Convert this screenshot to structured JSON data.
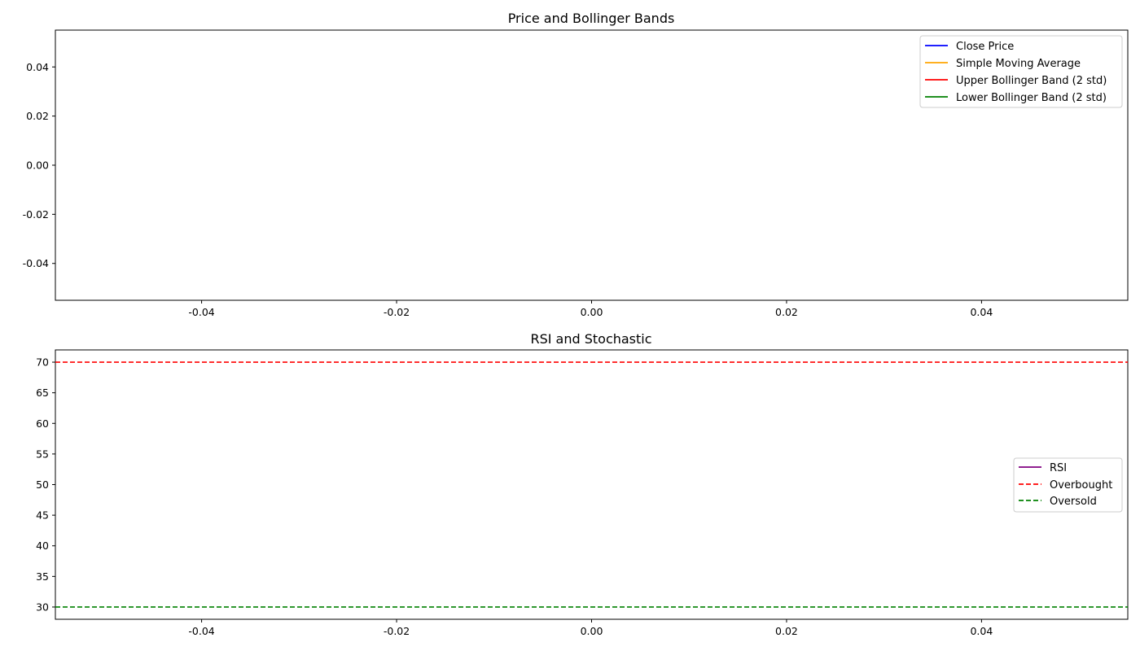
{
  "chart_data": [
    {
      "type": "line",
      "title": "Price and Bollinger Bands",
      "xlabel": "",
      "ylabel": "",
      "xlim": [
        -0.055,
        0.055
      ],
      "ylim": [
        -0.055,
        0.055
      ],
      "x_ticks": [
        "-0.04",
        "-0.02",
        "0.00",
        "0.02",
        "0.04"
      ],
      "y_ticks": [
        "0.04",
        "0.02",
        "0.00",
        "-0.02",
        "-0.04"
      ],
      "x_tick_values": [
        -0.04,
        -0.02,
        0.0,
        0.02,
        0.04
      ],
      "y_tick_values": [
        0.04,
        0.02,
        0.0,
        -0.02,
        -0.04
      ],
      "grid": false,
      "legend_position": "upper right",
      "series": [
        {
          "name": "Close Price",
          "color": "#0000ff",
          "style": "solid",
          "x": [],
          "values": []
        },
        {
          "name": "Simple Moving Average",
          "color": "#ffa500",
          "style": "solid",
          "x": [],
          "values": []
        },
        {
          "name": "Upper Bollinger Band (2 std)",
          "color": "#ff0000",
          "style": "solid",
          "x": [],
          "values": []
        },
        {
          "name": "Lower Bollinger Band (2 std)",
          "color": "#008000",
          "style": "solid",
          "x": [],
          "values": []
        }
      ]
    },
    {
      "type": "line",
      "title": "RSI and Stochastic",
      "xlabel": "",
      "ylabel": "",
      "xlim": [
        -0.055,
        0.055
      ],
      "ylim": [
        28,
        72
      ],
      "x_ticks": [
        "-0.04",
        "-0.02",
        "0.00",
        "0.02",
        "0.04"
      ],
      "y_ticks": [
        "70",
        "65",
        "60",
        "55",
        "50",
        "45",
        "40",
        "35",
        "30"
      ],
      "x_tick_values": [
        -0.04,
        -0.02,
        0.0,
        0.02,
        0.04
      ],
      "y_tick_values": [
        70,
        65,
        60,
        55,
        50,
        45,
        40,
        35,
        30
      ],
      "grid": false,
      "legend_position": "center right",
      "series": [
        {
          "name": "RSI",
          "color": "#800080",
          "style": "solid",
          "x": [],
          "values": []
        },
        {
          "name": "Overbought",
          "color": "#ff0000",
          "style": "dashed",
          "hline": 70
        },
        {
          "name": "Oversold",
          "color": "#008000",
          "style": "dashed",
          "hline": 30
        }
      ]
    }
  ]
}
